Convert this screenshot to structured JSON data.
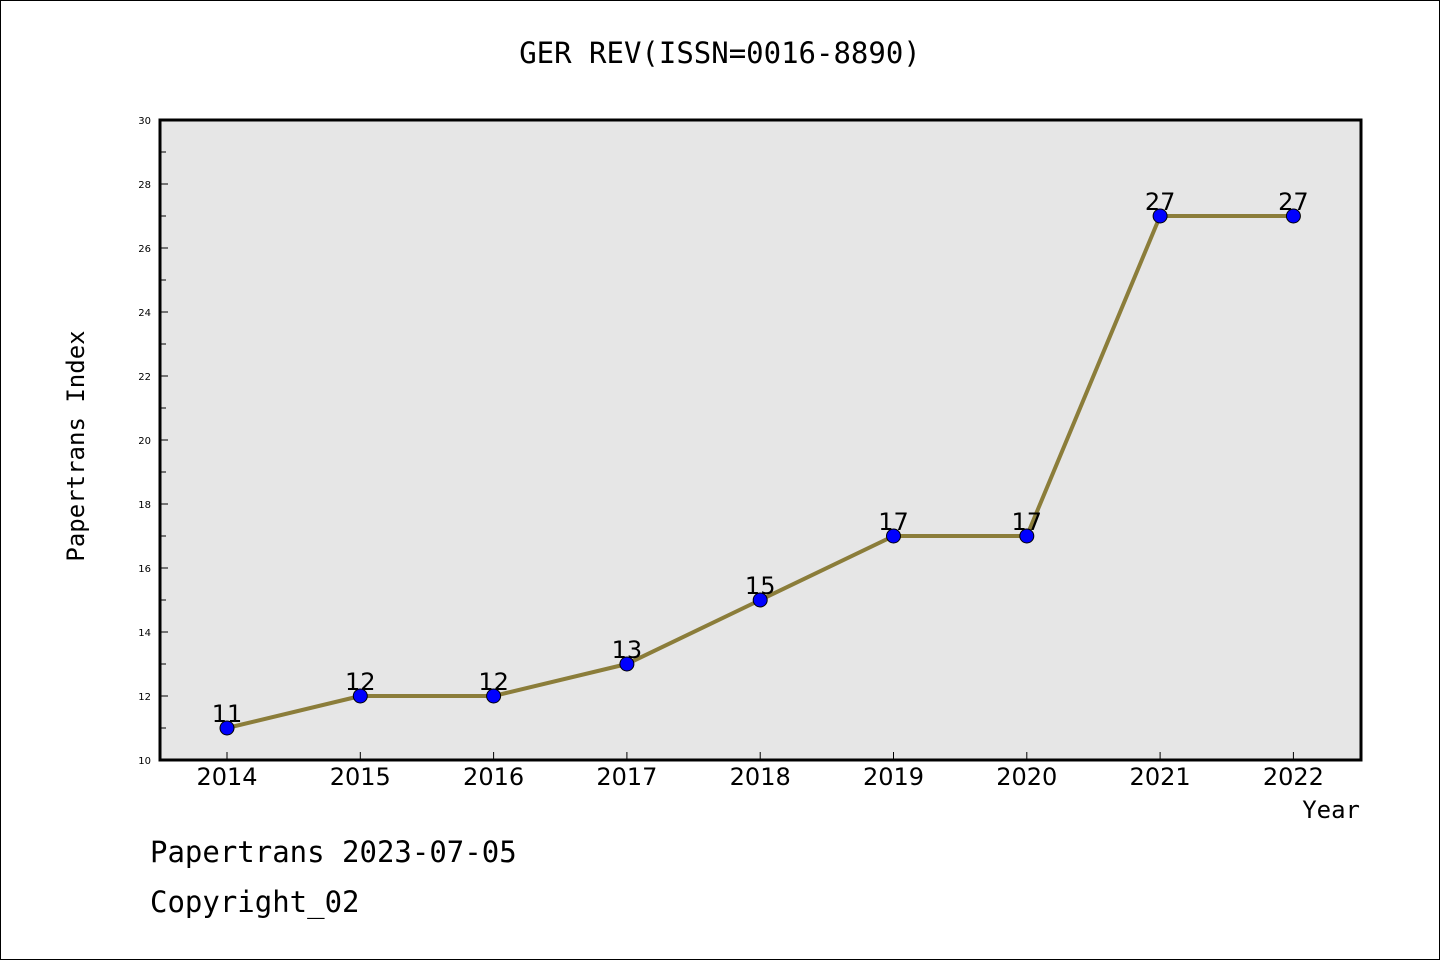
{
  "chart_data": {
    "type": "line",
    "title": "GER REV(ISSN=0016-8890)",
    "xlabel": "Year",
    "ylabel": "Papertrans Index",
    "categories": [
      "2014",
      "2015",
      "2016",
      "2017",
      "2018",
      "2019",
      "2020",
      "2021",
      "2022"
    ],
    "series": [
      {
        "values": [
          11,
          12,
          12,
          13,
          15,
          17,
          17,
          27,
          27
        ]
      }
    ],
    "ylim": [
      10,
      30
    ],
    "yticks": [
      "10",
      "12",
      "14",
      "16",
      "18",
      "20",
      "22",
      "24",
      "26",
      "28",
      "30"
    ],
    "data_labels": [
      "11",
      "12",
      "12",
      "13",
      "15",
      "17",
      "17",
      "27",
      "27"
    ],
    "grid": false,
    "colors": {
      "plot_background": "#e6e6e6",
      "line": "#8b7d3a",
      "marker": "#0000ff"
    }
  },
  "footer": {
    "line1": "Papertrans 2023-07-05",
    "line2": "Copyright_02"
  }
}
